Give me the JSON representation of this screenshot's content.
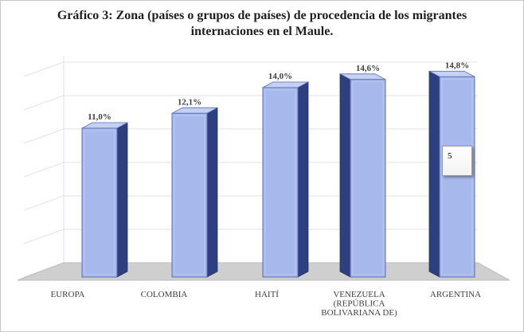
{
  "chart_data": {
    "type": "bar",
    "title": [
      "Gráfico 3: Zona (países o grupos de países) de procedencia de los migrantes",
      "internaciones en el Maule."
    ],
    "categories": [
      [
        "EUROPA"
      ],
      [
        "COLOMBIA"
      ],
      [
        "HAITÍ"
      ],
      [
        "VENEZUELA",
        "(REPÚBLICA",
        "BOLIVARIANA DE)"
      ],
      [
        "ARGENTINA"
      ]
    ],
    "values": [
      11.0,
      12.1,
      14.0,
      14.6,
      14.8
    ],
    "data_labels": [
      "11,0%",
      "12,1%",
      "14,0%",
      "14,6%",
      "14,8%"
    ],
    "ylim": [
      0,
      16
    ],
    "grid": true,
    "bar_color": "#a6b8ec",
    "bar_side_color": "#2e3f80",
    "annotation": "5"
  }
}
